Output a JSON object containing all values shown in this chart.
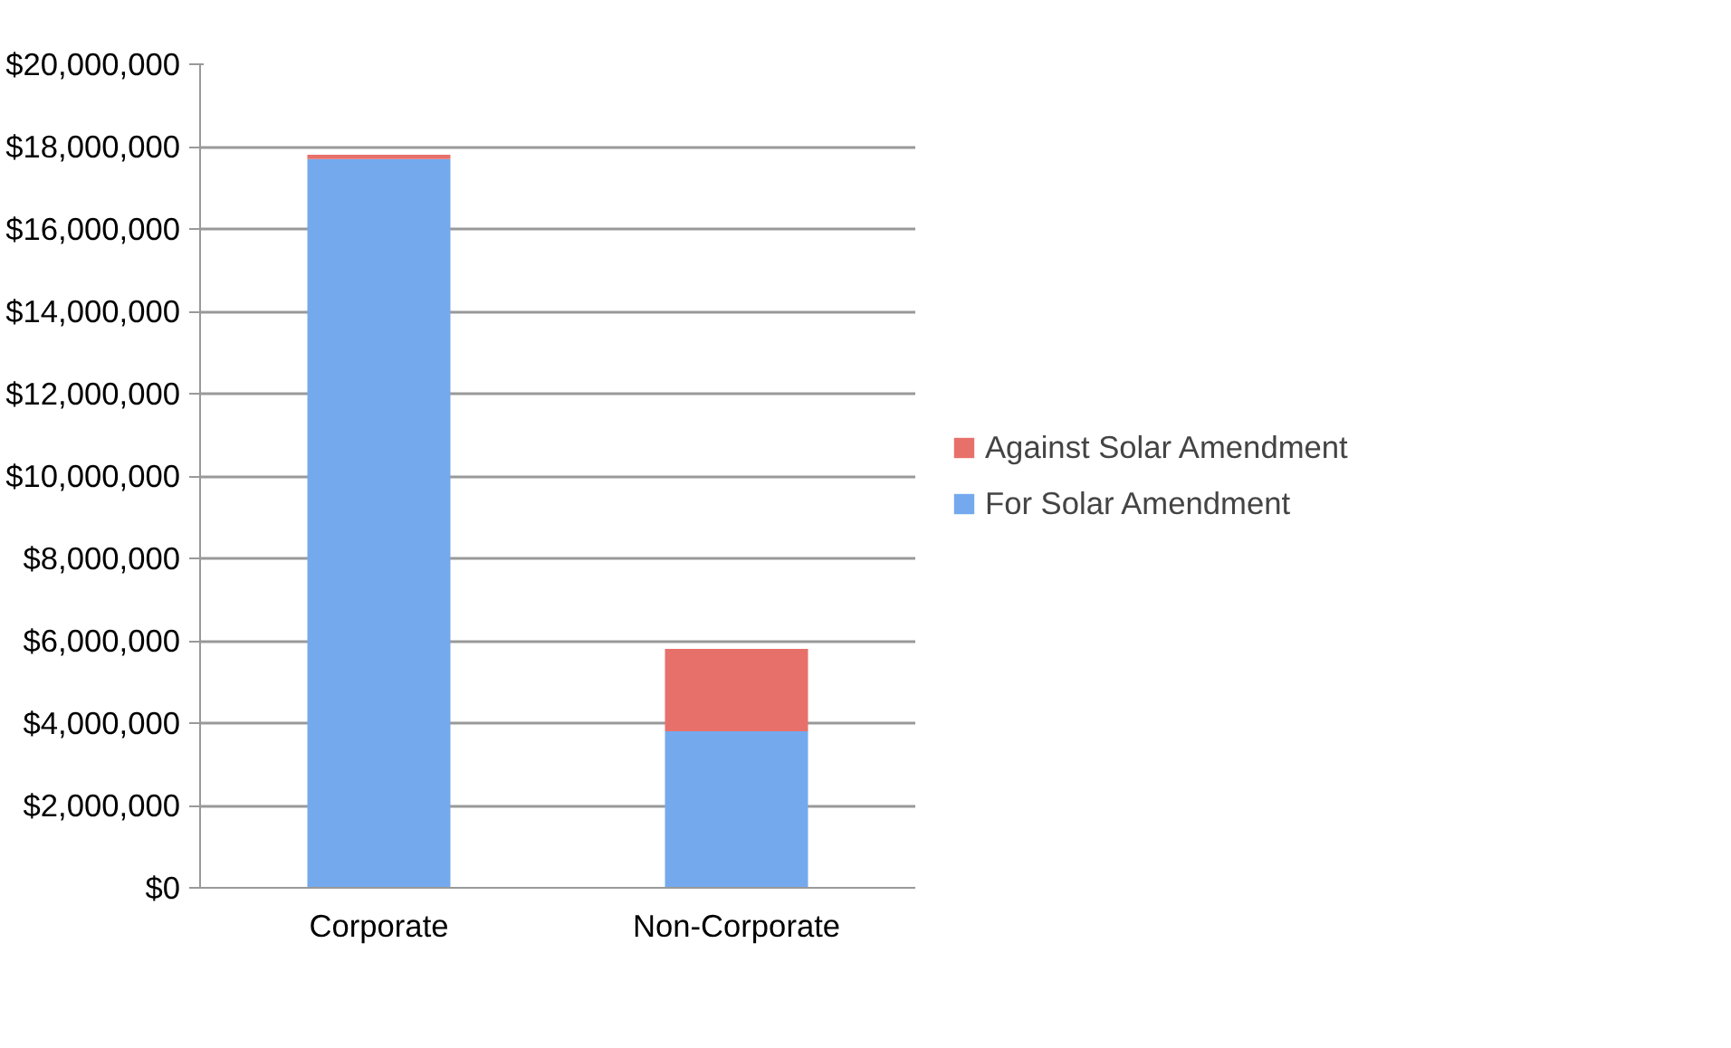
{
  "chart_data": {
    "type": "bar",
    "stacked": true,
    "categories": [
      "Corporate",
      "Non-Corporate"
    ],
    "series": [
      {
        "name": "For Solar Amendment",
        "color": "#74a9ee",
        "values": [
          17700000,
          3800000
        ]
      },
      {
        "name": "Against Solar Amendment",
        "color": "#e8706b",
        "values": [
          100000,
          2000000
        ]
      }
    ],
    "ylim": [
      0,
      20000000
    ],
    "yticks": [
      {
        "value": 0,
        "label": "$0"
      },
      {
        "value": 2000000,
        "label": "$2,000,000"
      },
      {
        "value": 4000000,
        "label": "$4,000,000"
      },
      {
        "value": 6000000,
        "label": "$6,000,000"
      },
      {
        "value": 8000000,
        "label": "$8,000,000"
      },
      {
        "value": 10000000,
        "label": "$10,000,000"
      },
      {
        "value": 12000000,
        "label": "$12,000,000"
      },
      {
        "value": 14000000,
        "label": "$14,000,000"
      },
      {
        "value": 16000000,
        "label": "$16,000,000"
      },
      {
        "value": 18000000,
        "label": "$18,000,000"
      },
      {
        "value": 20000000,
        "label": "$20,000,000"
      }
    ],
    "grid": "y",
    "legend": "right"
  }
}
